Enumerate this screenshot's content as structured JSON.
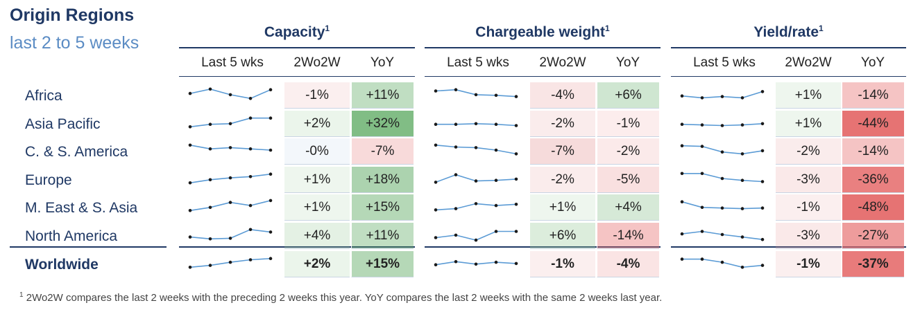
{
  "title": "Origin Regions",
  "subtitle": "last 2 to 5 weeks",
  "footnote_marker": "1",
  "footnote": "2Wo2W compares the last 2 weeks with the preceding 2 weeks this year. YoY compares the last 2 weeks with the same 2 weeks last year.",
  "colors": {
    "navy": "#1f3864",
    "spark": "#5b9bd5",
    "green_dark": "#5aa85f",
    "red_dark": "#e56b6b"
  },
  "chart_data": {
    "type": "table",
    "title": "Origin Regions — last 2 to 5 weeks",
    "groups": [
      {
        "title": "Capacity",
        "superscript": "1",
        "columns": [
          "Last 5 wks",
          "2Wo2W",
          "YoY"
        ]
      },
      {
        "title": "Chargeable weight",
        "superscript": "1",
        "columns": [
          "Last 5 wks",
          "2Wo2W",
          "YoY"
        ]
      },
      {
        "title": "Yield/rate",
        "superscript": "1",
        "columns": [
          "Last 5 wks",
          "2Wo2W",
          "YoY"
        ]
      }
    ],
    "rows": [
      {
        "region": "Africa",
        "capacity": {
          "trend": [
            0.55,
            0.9,
            0.45,
            0.15,
            0.85
          ],
          "wow": "-1%",
          "yoy": "+11%"
        },
        "weight": {
          "trend": [
            0.75,
            0.85,
            0.45,
            0.4,
            0.3
          ],
          "wow": "-4%",
          "yoy": "+6%"
        },
        "yield": {
          "trend": [
            0.35,
            0.2,
            0.3,
            0.2,
            0.7
          ],
          "wow": "+1%",
          "yoy": "-14%"
        }
      },
      {
        "region": "Asia Pacific",
        "capacity": {
          "trend": [
            0.15,
            0.35,
            0.4,
            0.85,
            0.85
          ],
          "wow": "+2%",
          "yoy": "+32%"
        },
        "weight": {
          "trend": [
            0.35,
            0.35,
            0.4,
            0.35,
            0.25
          ],
          "wow": "-2%",
          "yoy": "-1%"
        },
        "yield": {
          "trend": [
            0.35,
            0.3,
            0.25,
            0.3,
            0.4
          ],
          "wow": "+1%",
          "yoy": "-44%"
        }
      },
      {
        "region": "C. & S. America",
        "capacity": {
          "trend": [
            0.9,
            0.6,
            0.7,
            0.6,
            0.5
          ],
          "wow": "-0%",
          "yoy": "-7%"
        },
        "weight": {
          "trend": [
            0.9,
            0.75,
            0.7,
            0.5,
            0.2
          ],
          "wow": "-7%",
          "yoy": "-2%"
        },
        "yield": {
          "trend": [
            0.85,
            0.8,
            0.35,
            0.2,
            0.45
          ],
          "wow": "-2%",
          "yoy": "-14%"
        }
      },
      {
        "region": "Europe",
        "capacity": {
          "trend": [
            0.15,
            0.4,
            0.55,
            0.65,
            0.85
          ],
          "wow": "+1%",
          "yoy": "+18%"
        },
        "weight": {
          "trend": [
            0.2,
            0.8,
            0.3,
            0.35,
            0.45
          ],
          "wow": "-2%",
          "yoy": "-5%"
        },
        "yield": {
          "trend": [
            0.9,
            0.9,
            0.5,
            0.35,
            0.25
          ],
          "wow": "-3%",
          "yoy": "-36%"
        }
      },
      {
        "region": "M. East & S. Asia",
        "capacity": {
          "trend": [
            0.15,
            0.4,
            0.8,
            0.55,
            0.95
          ],
          "wow": "+1%",
          "yoy": "+15%"
        },
        "weight": {
          "trend": [
            0.2,
            0.3,
            0.7,
            0.55,
            0.65
          ],
          "wow": "+1%",
          "yoy": "+4%"
        },
        "yield": {
          "trend": [
            0.85,
            0.4,
            0.35,
            0.3,
            0.35
          ],
          "wow": "-1%",
          "yoy": "-48%"
        }
      },
      {
        "region": "North America",
        "capacity": {
          "trend": [
            0.3,
            0.15,
            0.2,
            0.9,
            0.7
          ],
          "wow": "+4%",
          "yoy": "+11%"
        },
        "weight": {
          "trend": [
            0.25,
            0.45,
            0.05,
            0.75,
            0.75
          ],
          "wow": "+6%",
          "yoy": "-14%"
        },
        "yield": {
          "trend": [
            0.55,
            0.75,
            0.5,
            0.3,
            0.1
          ],
          "wow": "-3%",
          "yoy": "-27%"
        }
      },
      {
        "region": "Worldwide",
        "bold": true,
        "capacity": {
          "trend": [
            0.15,
            0.3,
            0.55,
            0.75,
            0.85
          ],
          "wow": "+2%",
          "yoy": "+15%"
        },
        "weight": {
          "trend": [
            0.35,
            0.6,
            0.4,
            0.55,
            0.45
          ],
          "wow": "-1%",
          "yoy": "-4%"
        },
        "yield": {
          "trend": [
            0.8,
            0.8,
            0.55,
            0.15,
            0.3
          ],
          "wow": "-1%",
          "yoy": "-37%"
        }
      }
    ]
  }
}
